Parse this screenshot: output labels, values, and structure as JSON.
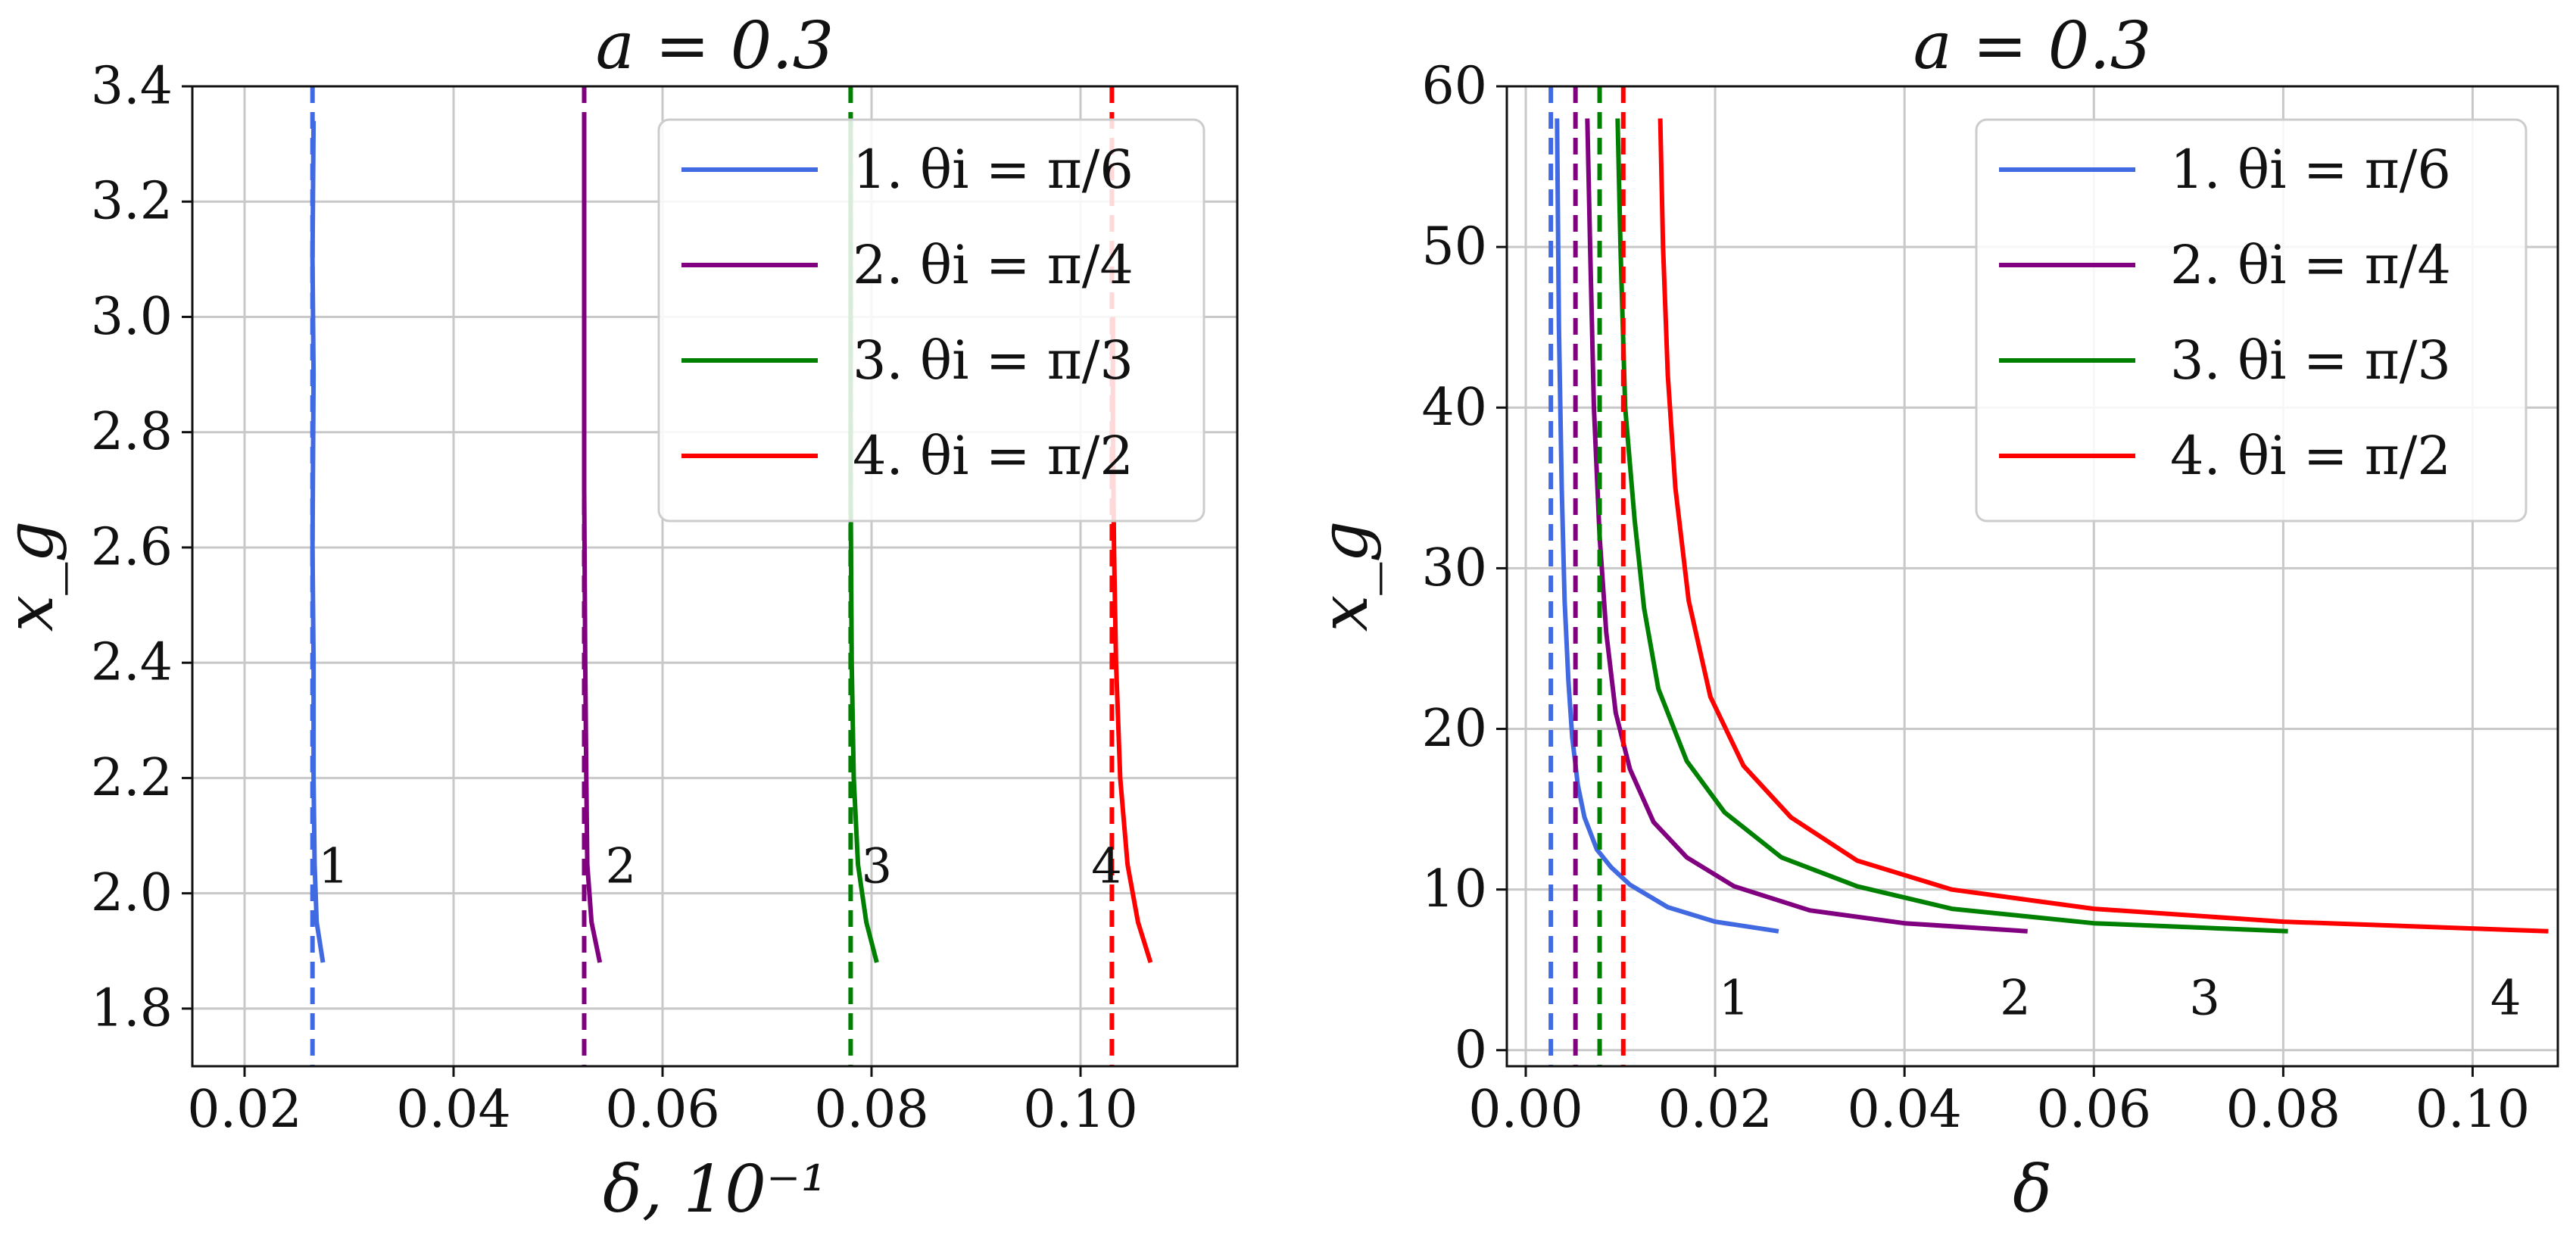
{
  "chart_data": [
    {
      "type": "line",
      "title": "a = 0.3",
      "xlabel": "δ, 10⁻¹",
      "ylabel": "x_g",
      "xlim": [
        0.015,
        0.115
      ],
      "ylim": [
        1.7,
        3.4
      ],
      "xticks": [
        0.02,
        0.04,
        0.06,
        0.08,
        0.1
      ],
      "xtick_labels": [
        "0.02",
        "0.04",
        "0.06",
        "0.08",
        "0.10"
      ],
      "yticks": [
        1.8,
        2.0,
        2.2,
        2.4,
        2.6,
        2.8,
        3.0,
        3.2,
        3.4
      ],
      "ytick_labels": [
        "1.8",
        "2.0",
        "2.2",
        "2.4",
        "2.6",
        "2.8",
        "3.0",
        "3.2",
        "3.4"
      ],
      "grid": true,
      "legend_position": "top-right",
      "series": [
        {
          "name": "1. θi = π/6",
          "color": "#4169e1",
          "asymptote": 0.0265,
          "x": [
            0.0275,
            0.0269,
            0.0267,
            0.0266,
            0.0266,
            0.0265,
            0.0266,
            0.0265,
            0.0266
          ],
          "y": [
            1.88,
            1.95,
            2.05,
            2.2,
            2.4,
            2.6,
            2.9,
            3.1,
            3.34
          ],
          "curve_label": "1",
          "label_at": [
            0.0285,
            2.04
          ]
        },
        {
          "name": "2. θi = π/4",
          "color": "#800080",
          "asymptote": 0.0525,
          "x": [
            0.054,
            0.0532,
            0.0528,
            0.0527,
            0.0526,
            0.0525,
            0.0525,
            0.0525
          ],
          "y": [
            1.88,
            1.95,
            2.05,
            2.2,
            2.4,
            2.7,
            3.0,
            3.34
          ],
          "curve_label": "2",
          "label_at": [
            0.056,
            2.04
          ]
        },
        {
          "name": "3. θi = π/3",
          "color": "#008000",
          "asymptote": 0.078,
          "x": [
            0.0805,
            0.0795,
            0.0787,
            0.0783,
            0.0781,
            0.078,
            0.078,
            0.078
          ],
          "y": [
            1.88,
            1.95,
            2.05,
            2.2,
            2.4,
            2.7,
            3.0,
            3.34
          ],
          "curve_label": "3",
          "label_at": [
            0.0805,
            2.04
          ]
        },
        {
          "name": "4. θi = π/2",
          "color": "#ff0000",
          "asymptote": 0.103,
          "x": [
            0.1067,
            0.1055,
            0.1045,
            0.1038,
            0.1034,
            0.1032,
            0.1031,
            0.1031
          ],
          "y": [
            1.88,
            1.95,
            2.05,
            2.2,
            2.4,
            2.6,
            2.8,
            3.0
          ],
          "curve_label": "4",
          "label_at": [
            0.1025,
            2.04
          ]
        }
      ]
    },
    {
      "type": "line",
      "title": "a = 0.3",
      "xlabel": "δ",
      "ylabel": "x_g",
      "xlim": [
        -0.002,
        0.109
      ],
      "ylim": [
        -1,
        60
      ],
      "xticks": [
        0.0,
        0.02,
        0.04,
        0.06,
        0.08,
        0.1
      ],
      "xtick_labels": [
        "0.00",
        "0.02",
        "0.04",
        "0.06",
        "0.08",
        "0.10"
      ],
      "yticks": [
        0,
        10,
        20,
        30,
        40,
        50,
        60
      ],
      "ytick_labels": [
        "0",
        "10",
        "20",
        "30",
        "40",
        "50",
        "60"
      ],
      "grid": true,
      "legend_position": "top-right",
      "series": [
        {
          "name": "1. θi = π/6",
          "color": "#4169e1",
          "asymptote": 0.00265,
          "x": [
            0.0267,
            0.02,
            0.015,
            0.011,
            0.009,
            0.0075,
            0.0062,
            0.0055,
            0.0049,
            0.0045,
            0.0041,
            0.0038,
            0.0035,
            0.0033
          ],
          "y": [
            7.4,
            8.0,
            8.9,
            10.3,
            11.4,
            12.5,
            14.5,
            16.5,
            19.5,
            23,
            28,
            35,
            45,
            58
          ],
          "curve_label": "1",
          "label_at": [
            0.022,
            3
          ]
        },
        {
          "name": "2. θi = π/4",
          "color": "#800080",
          "asymptote": 0.00525,
          "x": [
            0.053,
            0.04,
            0.03,
            0.022,
            0.017,
            0.0135,
            0.011,
            0.0095,
            0.0085,
            0.0078,
            0.0072,
            0.0068,
            0.0065
          ],
          "y": [
            7.4,
            7.9,
            8.7,
            10.2,
            12.0,
            14.2,
            17.5,
            21,
            26,
            32,
            40,
            50,
            58
          ],
          "curve_label": "2",
          "label_at": [
            0.0517,
            3
          ]
        },
        {
          "name": "3. θi = π/3",
          "color": "#008000",
          "asymptote": 0.0078,
          "x": [
            0.0805,
            0.06,
            0.045,
            0.035,
            0.027,
            0.021,
            0.017,
            0.014,
            0.0125,
            0.0115,
            0.0105,
            0.01,
            0.0097
          ],
          "y": [
            7.4,
            7.9,
            8.8,
            10.2,
            12.0,
            14.8,
            18.0,
            22.5,
            27.5,
            33,
            40,
            50,
            58
          ],
          "curve_label": "3",
          "label_at": [
            0.0717,
            3
          ]
        },
        {
          "name": "4. θi = π/2",
          "color": "#ff0000",
          "asymptote": 0.0103,
          "x": [
            0.108,
            0.08,
            0.06,
            0.045,
            0.035,
            0.028,
            0.023,
            0.0195,
            0.0172,
            0.0158,
            0.015,
            0.0145,
            0.0142
          ],
          "y": [
            7.4,
            8.0,
            8.8,
            10.0,
            11.8,
            14.5,
            17.7,
            22,
            28,
            35,
            42,
            50,
            58
          ],
          "curve_label": "4",
          "label_at": [
            0.1035,
            3
          ]
        }
      ]
    }
  ]
}
